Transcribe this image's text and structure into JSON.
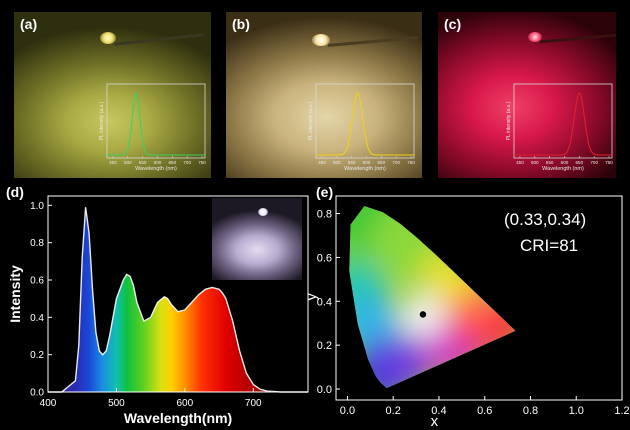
{
  "panels": {
    "a": {
      "label": "(a)",
      "inset": {
        "xlabel": "Wavelength (nm)",
        "ylabel": "PL intensity (a.u.)",
        "xticks": [
          "450",
          "500",
          "550",
          "600",
          "650",
          "700",
          "750"
        ],
        "peak_nm": 528,
        "fwhm_nm": 30,
        "line_color": "#3fd060"
      }
    },
    "b": {
      "label": "(b)",
      "inset": {
        "xlabel": "Wavelength (nm)",
        "ylabel": "PL intensity (a.u.)",
        "xticks": [
          "450",
          "500",
          "550",
          "600",
          "650",
          "700",
          "750"
        ],
        "peak_nm": 570,
        "fwhm_nm": 40,
        "line_color": "#f0d020"
      }
    },
    "c": {
      "label": "(c)",
      "inset": {
        "xlabel": "Wavelength (nm)",
        "ylabel": "PL intensity (a.u.)",
        "xticks": [
          "450",
          "500",
          "550",
          "600",
          "650",
          "700",
          "750"
        ],
        "peak_nm": 650,
        "fwhm_nm": 40,
        "line_color": "#e02030"
      }
    },
    "d": {
      "label": "(d)"
    },
    "e": {
      "label": "(e)",
      "annotation_coords": "(0.33,0.34)",
      "annotation_cri": "CRI=81"
    }
  },
  "chart_data": [
    {
      "type": "area",
      "panel": "d",
      "xlabel": "Wavelength(nm)",
      "ylabel": "Intensity",
      "xlim": [
        400,
        780
      ],
      "ylim": [
        0,
        1.05
      ],
      "xticks": [
        400,
        500,
        600,
        700
      ],
      "yticks": [
        0.0,
        0.2,
        0.4,
        0.6,
        0.8,
        1.0
      ],
      "x": [
        400,
        420,
        440,
        445,
        450,
        455,
        460,
        465,
        470,
        475,
        480,
        485,
        490,
        500,
        510,
        515,
        520,
        525,
        530,
        540,
        550,
        555,
        560,
        570,
        575,
        580,
        590,
        600,
        610,
        620,
        630,
        640,
        650,
        655,
        660,
        670,
        680,
        690,
        700,
        710,
        720,
        740,
        760,
        780
      ],
      "y": [
        0.0,
        0.0,
        0.06,
        0.25,
        0.72,
        0.99,
        0.85,
        0.55,
        0.32,
        0.22,
        0.2,
        0.22,
        0.3,
        0.5,
        0.6,
        0.63,
        0.62,
        0.57,
        0.48,
        0.38,
        0.4,
        0.44,
        0.48,
        0.51,
        0.5,
        0.47,
        0.43,
        0.44,
        0.48,
        0.52,
        0.55,
        0.56,
        0.55,
        0.53,
        0.5,
        0.38,
        0.22,
        0.1,
        0.04,
        0.015,
        0.005,
        0.0,
        0.0,
        0.0
      ],
      "fill": "spectral-gradient"
    },
    {
      "type": "scatter",
      "panel": "e",
      "xlabel": "x",
      "ylabel": "y",
      "xlim": [
        -0.05,
        1.2
      ],
      "ylim": [
        -0.05,
        0.88
      ],
      "xticks": [
        "0.0",
        "0.2",
        "0.4",
        "0.6",
        "0.8",
        "1.0",
        "1.2"
      ],
      "yticks": [
        "0.0",
        "0.2",
        "0.4",
        "0.6",
        "0.8"
      ],
      "points": [
        {
          "x": 0.33,
          "y": 0.34
        }
      ],
      "locus_x": [
        0.1741,
        0.1736,
        0.1733,
        0.1726,
        0.1714,
        0.1689,
        0.1644,
        0.1566,
        0.144,
        0.1241,
        0.0913,
        0.0454,
        0.0082,
        0.0139,
        0.0743,
        0.1547,
        0.2296,
        0.3016,
        0.3731,
        0.4441,
        0.5125,
        0.5752,
        0.627,
        0.6658,
        0.6915,
        0.7079,
        0.719,
        0.7347
      ],
      "locus_y": [
        0.005,
        0.0049,
        0.0048,
        0.0048,
        0.0051,
        0.0069,
        0.0109,
        0.0177,
        0.0297,
        0.0578,
        0.1327,
        0.295,
        0.5384,
        0.7502,
        0.8338,
        0.8059,
        0.7543,
        0.6923,
        0.6245,
        0.5547,
        0.4866,
        0.4242,
        0.3725,
        0.334,
        0.3083,
        0.292,
        0.2809,
        0.2653
      ]
    }
  ]
}
